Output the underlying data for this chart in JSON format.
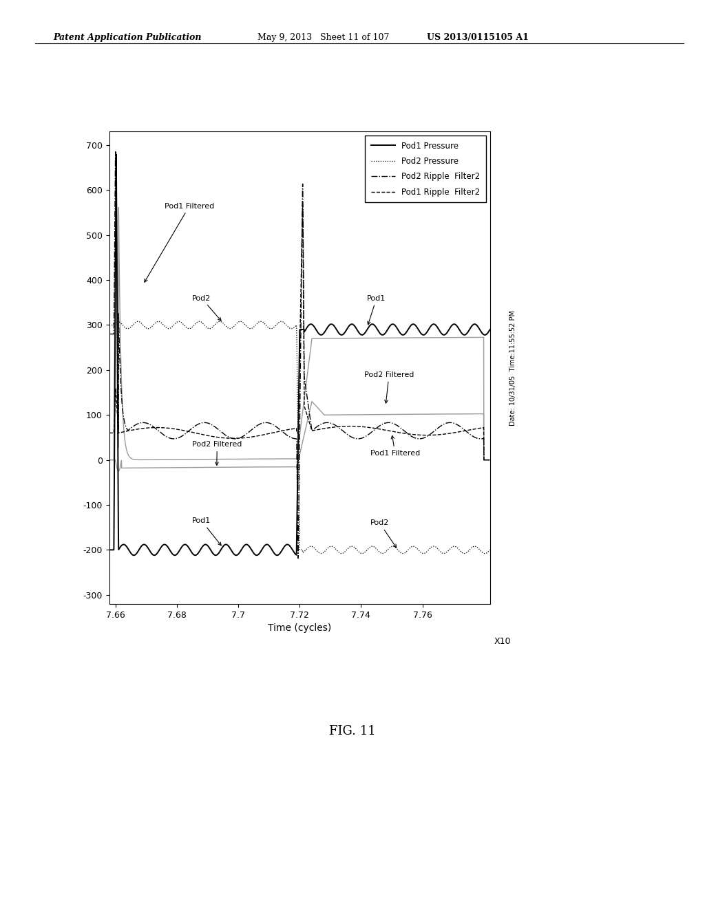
{
  "title": "",
  "xlabel": "Time (cycles)",
  "ylabel": "",
  "xlim": [
    7.658,
    7.782
  ],
  "ylim": [
    -320,
    730
  ],
  "yticks": [
    -300,
    -200,
    -100,
    0,
    100,
    200,
    300,
    400,
    500,
    600,
    700
  ],
  "xticks": [
    7.66,
    7.68,
    7.7,
    7.72,
    7.74,
    7.76
  ],
  "xtick_labels": [
    "7.66",
    "7.68",
    "7.7",
    "7.72",
    "7.74",
    "7.76"
  ],
  "x10_label": "X10",
  "legend_entries": [
    "Pod1 Pressure",
    "Pod2 Pressure",
    "Pod2 Ripple  Filter2",
    "Pod1 Ripple  Filter2"
  ],
  "date_text": "Date: 10/31/05  Time:11:55:52 PM",
  "fig_label": "FIG. 11",
  "header_left": "Patent Application Publication",
  "header_mid": "May 9, 2013   Sheet 11 of 107",
  "header_right": "US 2013/0115105 A1",
  "background_color": "#ffffff",
  "line_color": "#000000",
  "gray_color": "#999999",
  "transition_x": 7.719
}
